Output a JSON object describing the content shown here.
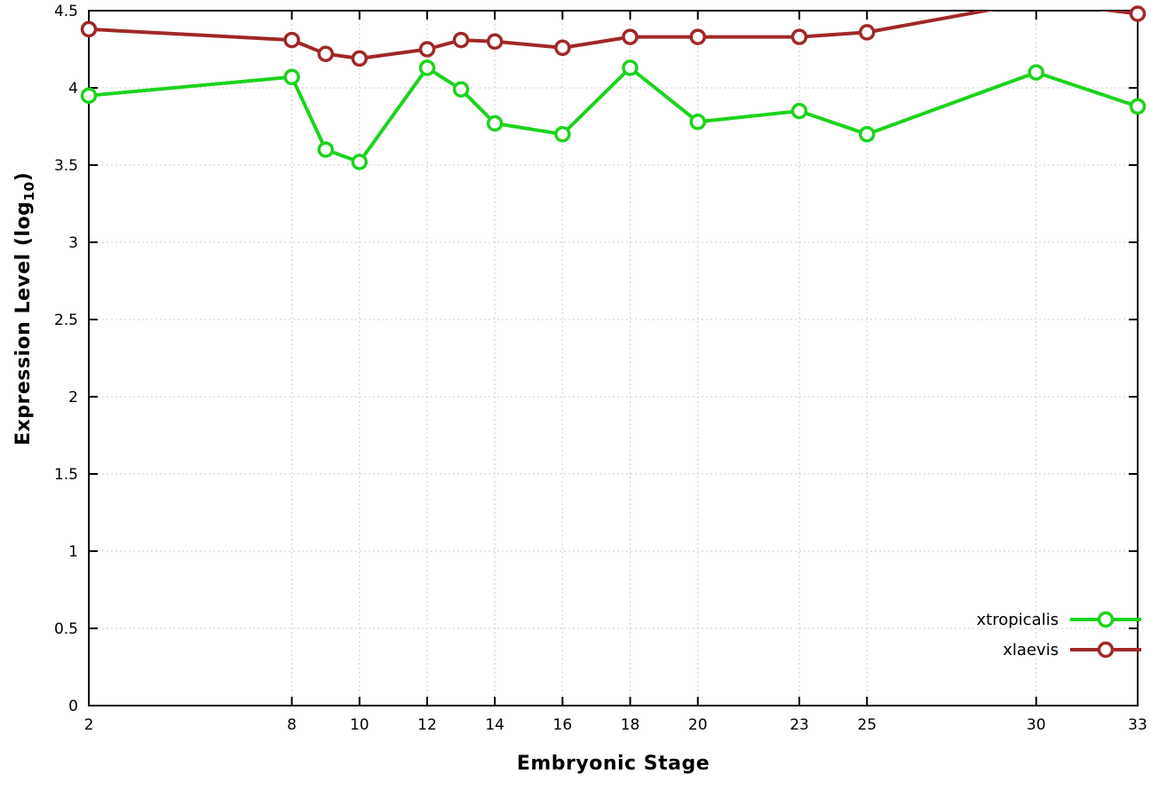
{
  "chart_data": {
    "type": "line",
    "title": "",
    "xlabel": "Embryonic Stage",
    "ylabel": {
      "main": "Expression Level (log",
      "sub": "10",
      "end": ")"
    },
    "xlim": [
      2,
      33
    ],
    "ylim": [
      0,
      4.5
    ],
    "x_ticks": [
      2,
      8,
      10,
      12,
      14,
      16,
      18,
      20,
      23,
      25,
      30,
      33
    ],
    "y_ticks": [
      0,
      0.5,
      1,
      1.5,
      2,
      2.5,
      3,
      3.5,
      4,
      4.5
    ],
    "grid": true,
    "legend_position": "bottom-right",
    "x": [
      2,
      8,
      9,
      10,
      12,
      13,
      14,
      16,
      18,
      20,
      23,
      25,
      30,
      33
    ],
    "series": [
      {
        "name": "xtropicalis",
        "color": "#1bd41b",
        "values": [
          3.95,
          4.07,
          3.6,
          3.52,
          4.13,
          3.99,
          3.77,
          3.7,
          4.13,
          3.78,
          3.85,
          3.7,
          4.1,
          3.88
        ]
      },
      {
        "name": "xlaevis",
        "color": "#a02828",
        "values": [
          4.38,
          4.31,
          4.22,
          4.19,
          4.25,
          4.31,
          4.3,
          4.26,
          4.33,
          4.33,
          4.33,
          4.36,
          4.56,
          4.48
        ]
      }
    ]
  }
}
